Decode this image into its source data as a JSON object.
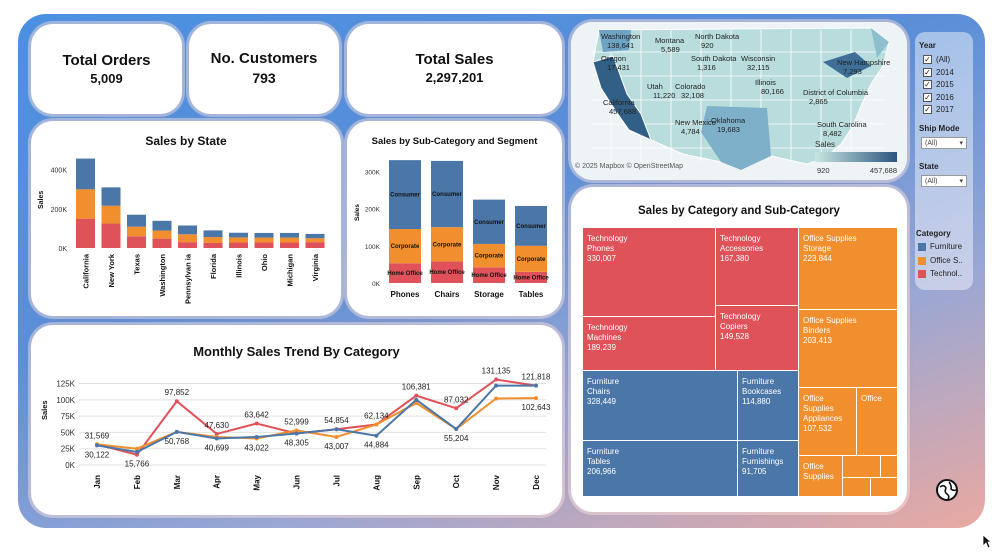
{
  "kpis": {
    "orders_label": "Total Orders",
    "orders_value": "5,009",
    "customers_label": "No. Customers",
    "customers_value": "793",
    "sales_label": "Total Sales",
    "sales_value": "2,297,201"
  },
  "colors": {
    "technology": "#e0525a",
    "office_supplies": "#f18f2e",
    "furniture": "#4a76a8"
  },
  "state_chart": {
    "title": "Sales by State",
    "ylabel": "Sales",
    "ticks": [
      "400K",
      "200K",
      "0K"
    ],
    "categories": [
      "California",
      "New York",
      "Texas",
      "Washington",
      "Pennsylvania",
      "Florida",
      "Illinois",
      "Ohio",
      "Michigan",
      "Virginia"
    ],
    "display_labels": [
      "California",
      "New York",
      "Texas",
      "Washington",
      "Pennsylvan ia",
      "Florida",
      "Illinois",
      "Ohio",
      "Michigan",
      "Virginia"
    ]
  },
  "subcat_chart": {
    "title": "Sales by Sub-Category and Segment",
    "ylabel": "Sales",
    "ticks": [
      "300K",
      "200K",
      "100K",
      "0K"
    ],
    "categories": [
      "Phones",
      "Chairs",
      "Storage",
      "Tables"
    ],
    "segment_labels": {
      "consumer": "Consumer",
      "corporate": "Corporate",
      "home": "Home Office"
    }
  },
  "map": {
    "states": [
      {
        "name": "Washington",
        "value": "138,641"
      },
      {
        "name": "Montana",
        "value": "5,589"
      },
      {
        "name": "North Dakota",
        "value": "920"
      },
      {
        "name": "Oregon",
        "value": "17,431"
      },
      {
        "name": "South Dakota",
        "value": "1,316"
      },
      {
        "name": "Wisconsin",
        "value": "32,115"
      },
      {
        "name": "New Hampshire",
        "value": "7,293"
      },
      {
        "name": "Utah",
        "value": "11,220"
      },
      {
        "name": "Colorado",
        "value": "32,108"
      },
      {
        "name": "Illinois",
        "value": "80,166"
      },
      {
        "name": "California",
        "value": "457,688"
      },
      {
        "name": "District of Columbia",
        "value": "2,865"
      },
      {
        "name": "New Mexico",
        "value": "4,784"
      },
      {
        "name": "Oklahoma",
        "value": "19,683"
      },
      {
        "name": "South Carolina",
        "value": "8,482"
      }
    ],
    "copyright": "© 2025 Mapbox © OpenStreetMap",
    "legend_title": "Sales",
    "legend_min": "920",
    "legend_max": "457,688"
  },
  "filters": {
    "year_label": "Year",
    "years": [
      "(All)",
      "2014",
      "2015",
      "2016",
      "2017"
    ],
    "ship_mode_label": "Ship Mode",
    "ship_mode_value": "(All)",
    "state_label": "State",
    "state_value": "(All)",
    "category_label": "Category",
    "categories": [
      "Furniture",
      "Office S..",
      "Technol.."
    ]
  },
  "treemap": {
    "title": "Sales by Category and Sub-Category",
    "cells": [
      {
        "category": "Technology",
        "sub": "Phones",
        "value": "330,007"
      },
      {
        "category": "Technology",
        "sub": "Accessories",
        "value": "167,380"
      },
      {
        "category": "Technology",
        "sub": "Machines",
        "value": "189,239"
      },
      {
        "category": "Technology",
        "sub": "Copiers",
        "value": "149,528"
      },
      {
        "category": "Furniture",
        "sub": "Chairs",
        "value": "328,449"
      },
      {
        "category": "Furniture",
        "sub": "Bookcases",
        "value": "114,880"
      },
      {
        "category": "Furniture",
        "sub": "Tables",
        "value": "206,966"
      },
      {
        "category": "Furniture",
        "sub": "Furnishings",
        "value": "91,705"
      },
      {
        "category": "Office Supplies",
        "sub": "Storage",
        "value": "223,844"
      },
      {
        "category": "Office Supplies",
        "sub": "Binders",
        "value": "203,413"
      },
      {
        "category": "Office Supplies",
        "sub": "Appliances",
        "value": "107,532"
      },
      {
        "category": "Office",
        "sub": "",
        "value": ""
      },
      {
        "category": "Office Supplies",
        "sub": "",
        "value": ""
      }
    ]
  },
  "chart_data": [
    {
      "type": "bar",
      "title": "Sales by State",
      "ylabel": "Sales",
      "ylim": [
        0,
        460000
      ],
      "categories": [
        "California",
        "New York",
        "Texas",
        "Washington",
        "Pennsylvania",
        "Florida",
        "Illinois",
        "Ohio",
        "Michigan",
        "Virginia"
      ],
      "series": [
        {
          "name": "Furniture",
          "values": [
            157000,
            94000,
            61000,
            50000,
            45000,
            34000,
            24000,
            24000,
            24000,
            22000
          ]
        },
        {
          "name": "Office Supplies",
          "values": [
            150000,
            91000,
            49000,
            41000,
            40000,
            30000,
            26000,
            25000,
            25000,
            20000
          ]
        },
        {
          "name": "Technology",
          "values": [
            150000,
            125000,
            60000,
            48000,
            30000,
            26000,
            28000,
            28000,
            28000,
            30000
          ]
        }
      ]
    },
    {
      "type": "bar",
      "title": "Sales by Sub-Category and Segment",
      "ylabel": "Sales",
      "ylim": [
        0,
        340000
      ],
      "categories": [
        "Phones",
        "Chairs",
        "Storage",
        "Tables"
      ],
      "series": [
        {
          "name": "Home Office",
          "values": [
            53000,
            58000,
            42000,
            30000
          ]
        },
        {
          "name": "Corporate",
          "values": [
            92000,
            92000,
            63000,
            70000
          ]
        },
        {
          "name": "Consumer",
          "values": [
            185000,
            178000,
            119000,
            107000
          ]
        }
      ]
    },
    {
      "type": "line",
      "title": "Monthly Sales Trend By Category",
      "ylabel": "Sales",
      "ylim": [
        0,
        135000
      ],
      "ticks": [
        "0K",
        "25K",
        "50K",
        "75K",
        "100K",
        "125K"
      ],
      "categories": [
        "Jan",
        "Feb",
        "Mar",
        "Apr",
        "May",
        "Jun",
        "Jul",
        "Aug",
        "Sep",
        "Oct",
        "Nov",
        "Dec"
      ],
      "series": [
        {
          "name": "Technology",
          "values": [
            31569,
            15766,
            97852,
            47630,
            63642,
            48305,
            54854,
            62134,
            106381,
            87032,
            131135,
            121818
          ]
        },
        {
          "name": "Office Supplies",
          "values": [
            31569,
            25000,
            50768,
            43022,
            40699,
            52999,
            43007,
            62134,
            95000,
            55204,
            102000,
            102643
          ]
        },
        {
          "name": "Furniture",
          "values": [
            30122,
            20000,
            50768,
            40699,
            43022,
            48305,
            54854,
            44884,
            100000,
            55204,
            121818,
            121818
          ]
        }
      ],
      "value_labels": [
        {
          "text": "31,569",
          "series": 0,
          "i": 0,
          "above": true
        },
        {
          "text": "30,122",
          "series": 2,
          "i": 0,
          "above": false
        },
        {
          "text": "15,766",
          "series": 0,
          "i": 1,
          "above": false
        },
        {
          "text": "97,852",
          "series": 0,
          "i": 2,
          "above": true
        },
        {
          "text": "50,768",
          "series": 1,
          "i": 2,
          "above": false
        },
        {
          "text": "47,630",
          "series": 0,
          "i": 3,
          "above": true
        },
        {
          "text": "40,699",
          "series": 2,
          "i": 3,
          "above": false
        },
        {
          "text": "63,642",
          "series": 0,
          "i": 4,
          "above": true
        },
        {
          "text": "43,022",
          "series": 1,
          "i": 4,
          "above": false
        },
        {
          "text": "52,999",
          "series": 1,
          "i": 5,
          "above": true
        },
        {
          "text": "48,305",
          "series": 2,
          "i": 5,
          "above": false
        },
        {
          "text": "54,854",
          "series": 0,
          "i": 6,
          "above": true
        },
        {
          "text": "43,007",
          "series": 1,
          "i": 6,
          "above": false
        },
        {
          "text": "62,134",
          "series": 0,
          "i": 7,
          "above": true
        },
        {
          "text": "44,884",
          "series": 2,
          "i": 7,
          "above": false
        },
        {
          "text": "106,381",
          "series": 0,
          "i": 8,
          "above": true
        },
        {
          "text": "87,032",
          "series": 0,
          "i": 9,
          "above": true
        },
        {
          "text": "55,204",
          "series": 1,
          "i": 9,
          "above": false
        },
        {
          "text": "131,135",
          "series": 0,
          "i": 10,
          "above": true
        },
        {
          "text": "121,818",
          "series": 2,
          "i": 11,
          "above": true
        },
        {
          "text": "102,643",
          "series": 1,
          "i": 11,
          "above": false
        }
      ]
    }
  ]
}
